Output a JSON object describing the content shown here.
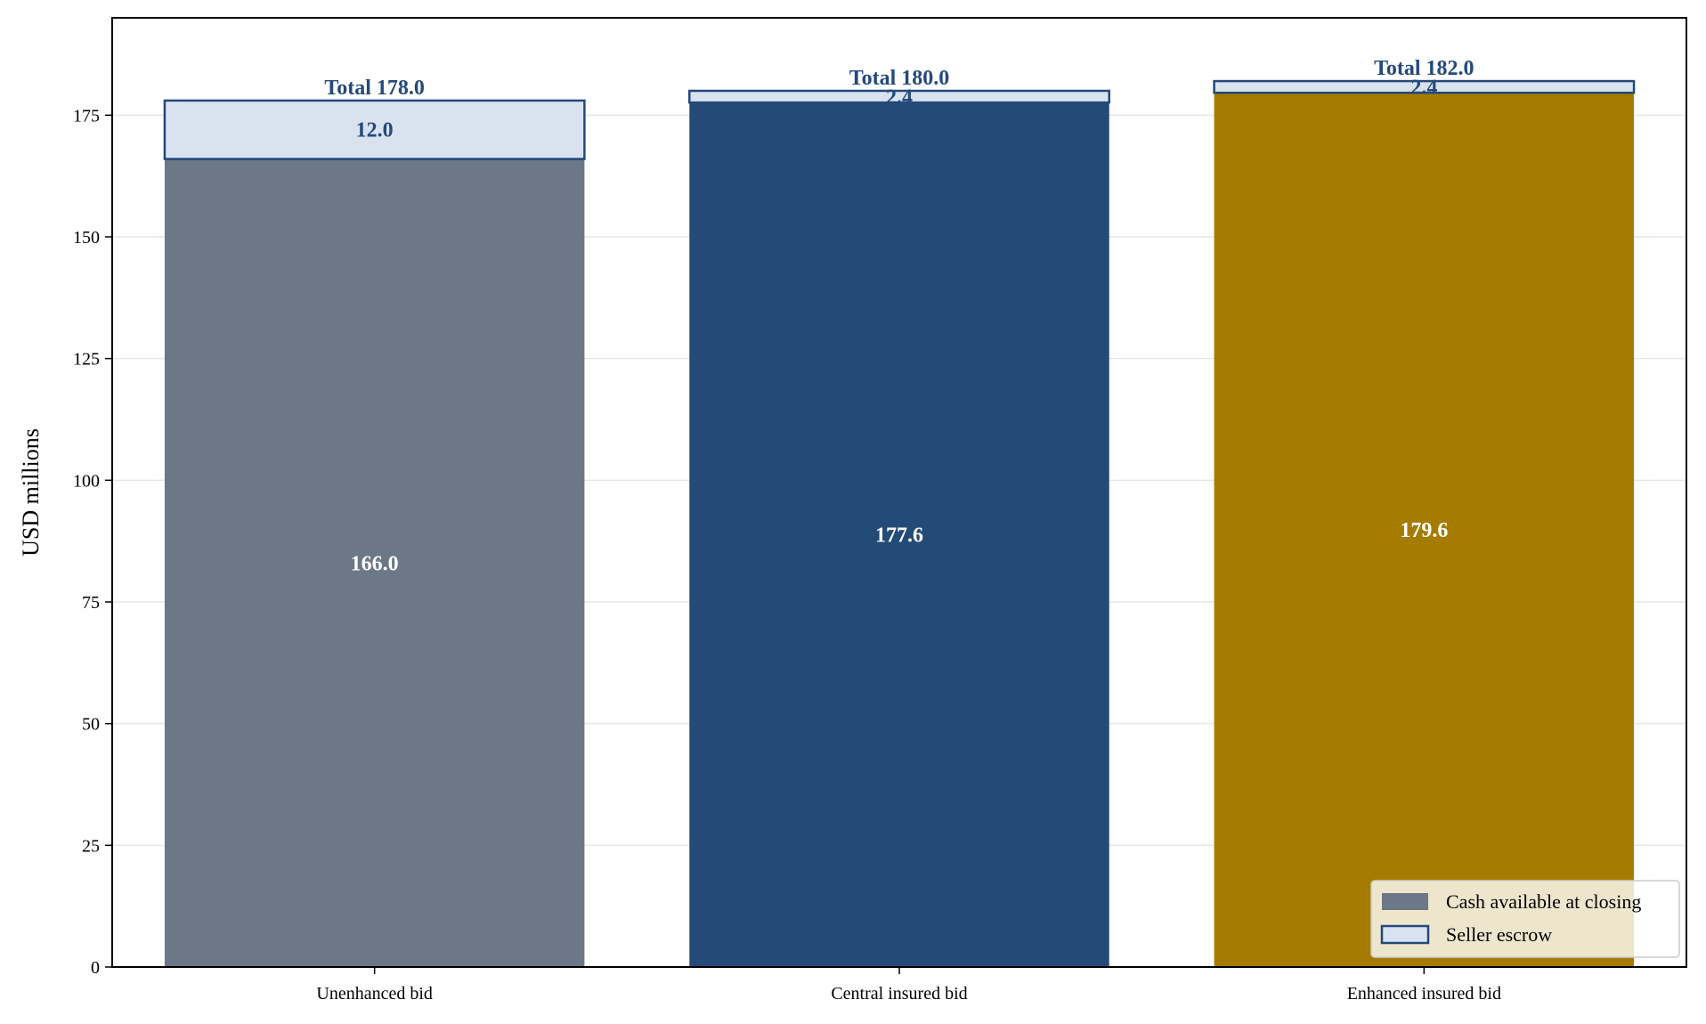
{
  "chart_data": {
    "type": "bar",
    "stacked": true,
    "categories": [
      "Unenhanced bid",
      "Central insured bid",
      "Enhanced insured bid"
    ],
    "series": [
      {
        "name": "Cash available at closing",
        "values": [
          166.0,
          177.6,
          179.6
        ],
        "value_labels": [
          "166.0",
          "177.6",
          "179.6"
        ],
        "colors": [
          "#6c7887",
          "#244a77",
          "#a57c00"
        ]
      },
      {
        "name": "Seller escrow",
        "values": [
          12.0,
          2.4,
          2.4
        ],
        "value_labels": [
          "12.0",
          "2.4",
          "2.4"
        ],
        "fill": "#d9e3f0",
        "edge": "#24497a"
      }
    ],
    "totals": [
      178.0,
      180.0,
      182.0
    ],
    "total_labels": [
      "Total 178.0",
      "Total 180.0",
      "Total 182.0"
    ],
    "title": "",
    "xlabel": "",
    "ylabel": "USD millions",
    "ylim": [
      0,
      195
    ],
    "yticks": [
      0,
      25,
      50,
      75,
      100,
      125,
      150,
      175
    ],
    "ytick_labels": [
      "0",
      "25",
      "50",
      "75",
      "100",
      "125",
      "150",
      "175"
    ],
    "grid": "y",
    "legend_position": "bottom-right",
    "legend": [
      {
        "label": "Cash available at closing",
        "swatch": "#6c7887"
      },
      {
        "label": "Seller escrow",
        "swatch": "#d9e3f0",
        "edge": "#24497a"
      }
    ]
  }
}
